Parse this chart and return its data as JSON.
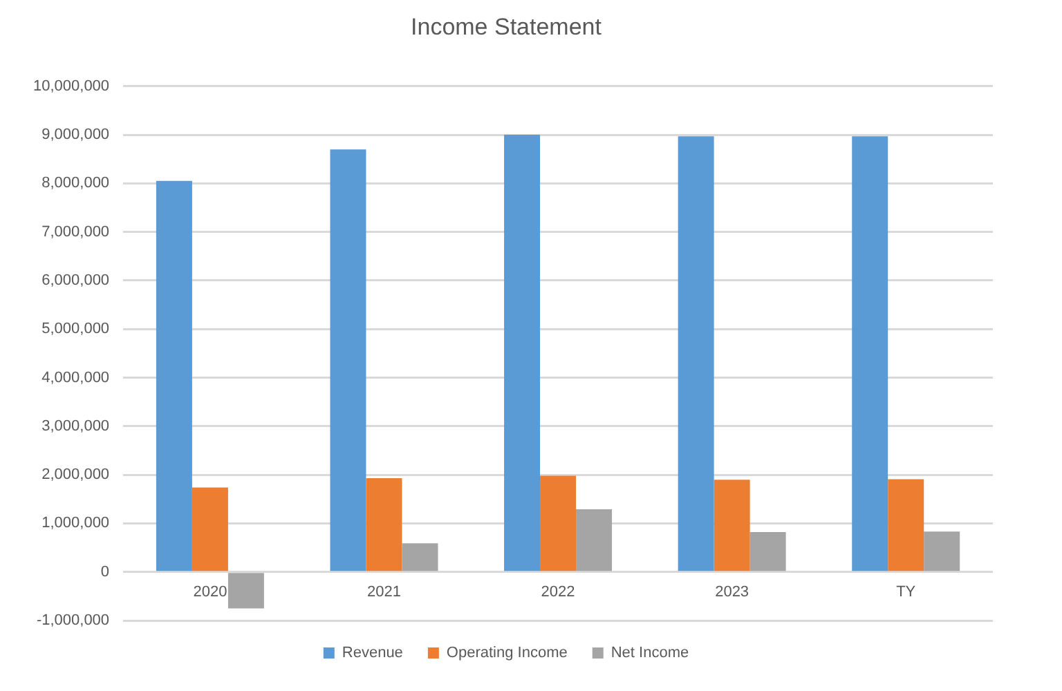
{
  "chart_data": {
    "type": "bar",
    "title": "Income Statement",
    "categories": [
      "2020",
      "2021",
      "2022",
      "2023",
      "TY"
    ],
    "series": [
      {
        "name": "Revenue",
        "color": "#5b9bd5",
        "values": [
          8050000,
          8700000,
          9000000,
          8970000,
          8970000
        ]
      },
      {
        "name": "Operating Income",
        "color": "#ed7d31",
        "values": [
          1740000,
          1930000,
          1980000,
          1900000,
          1910000
        ]
      },
      {
        "name": "Net Income",
        "color": "#a5a5a5",
        "values": [
          -750000,
          590000,
          1290000,
          820000,
          830000
        ]
      }
    ],
    "ylim": [
      -1000000,
      10000000
    ],
    "yticks": [
      {
        "value": -1000000,
        "label": "-1,000,000"
      },
      0,
      {
        "value": 1000000,
        "label": "1,000,000"
      },
      {
        "value": 2000000,
        "label": "2,000,000"
      },
      {
        "value": 3000000,
        "label": "3,000,000"
      },
      {
        "value": 4000000,
        "label": "4,000,000"
      },
      {
        "value": 5000000,
        "label": "5,000,000"
      },
      {
        "value": 6000000,
        "label": "6,000,000"
      },
      {
        "value": 7000000,
        "label": "7,000,000"
      },
      {
        "value": 8000000,
        "label": "8,000,000"
      },
      {
        "value": 9000000,
        "label": "9,000,000"
      },
      {
        "value": 10000000,
        "label": "10,000,000"
      }
    ],
    "grid": "y",
    "legend": "bottom"
  }
}
